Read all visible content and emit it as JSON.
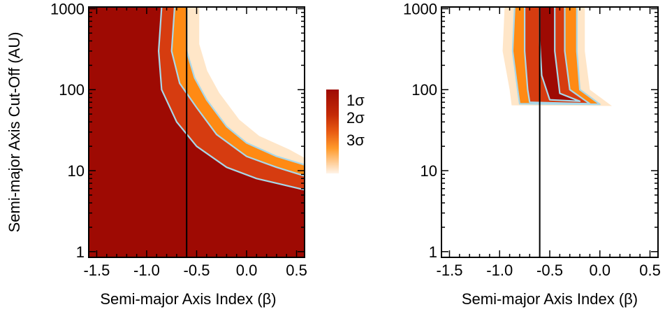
{
  "figure": {
    "colors": {
      "confidence_fill": "#9e0a03",
      "mid_red": "#d63c10",
      "orange": "#ff8a14",
      "fade": "#ffe6c8",
      "contour": "#a8d8ea",
      "reference_line": "#000000",
      "axis": "#000000"
    },
    "colorbar": {
      "labels": [
        "1σ",
        "2σ",
        "3σ"
      ]
    }
  },
  "chart_data": [
    {
      "type": "heatmap",
      "panel": "left",
      "title": "",
      "xlabel": "Semi-major Axis Index (β)",
      "ylabel": "Semi-major Axis Cut-Off (AU)",
      "xlim": [
        -1.58,
        0.58
      ],
      "ylim": [
        0.85,
        1050
      ],
      "yscale": "log",
      "x_ticks": [
        -1.5,
        -1.0,
        -0.5,
        0.0,
        0.5
      ],
      "x_tick_labels": [
        "-1.5",
        "-1.0",
        "-0.5",
        "0.0",
        "0.5"
      ],
      "y_ticks": [
        1,
        10,
        100,
        1000
      ],
      "y_tick_labels": [
        "1",
        "10",
        "100",
        "1000"
      ],
      "reference_x": -0.6,
      "contours": [
        {
          "level": "1σ",
          "points": [
            [
              -0.85,
              1050
            ],
            [
              -0.88,
              300
            ],
            [
              -0.85,
              100
            ],
            [
              -0.7,
              40
            ],
            [
              -0.5,
              20
            ],
            [
              -0.2,
              11
            ],
            [
              0.1,
              8
            ],
            [
              0.58,
              5.8
            ]
          ]
        },
        {
          "level": "2σ",
          "points": [
            [
              -0.72,
              1050
            ],
            [
              -0.75,
              300
            ],
            [
              -0.67,
              120
            ],
            [
              -0.5,
              60
            ],
            [
              -0.3,
              28
            ],
            [
              0.0,
              15
            ],
            [
              0.3,
              11
            ],
            [
              0.58,
              8.6
            ]
          ]
        },
        {
          "level": "3σ",
          "points": [
            [
              -0.6,
              1050
            ],
            [
              -0.6,
              300
            ],
            [
              -0.52,
              140
            ],
            [
              -0.4,
              75
            ],
            [
              -0.2,
              35
            ],
            [
              0.0,
              22
            ],
            [
              0.3,
              15
            ],
            [
              0.58,
              11.8
            ]
          ]
        }
      ]
    },
    {
      "type": "heatmap",
      "panel": "right",
      "title": "",
      "xlabel": "Semi-major Axis Index (β)",
      "ylabel": "",
      "xlim": [
        -1.58,
        0.58
      ],
      "ylim": [
        0.85,
        1050
      ],
      "yscale": "log",
      "x_ticks": [
        -1.5,
        -1.0,
        -0.5,
        0.0,
        0.5
      ],
      "x_tick_labels": [
        "-1.5",
        "-1.0",
        "-0.5",
        "0.0",
        "0.5"
      ],
      "y_ticks": [
        1,
        10,
        100,
        1000
      ],
      "y_tick_labels": [
        "1",
        "10",
        "100",
        "1000"
      ],
      "reference_x": -0.6,
      "contours": [
        {
          "level": "1σ",
          "points": [
            [
              -0.6,
              1050
            ],
            [
              -0.6,
              400
            ],
            [
              -0.58,
              150
            ],
            [
              -0.5,
              75
            ],
            [
              -0.2,
              72
            ],
            [
              -0.4,
              90
            ],
            [
              -0.45,
              300
            ],
            [
              -0.45,
              1050
            ]
          ]
        },
        {
          "level": "2σ",
          "points": [
            [
              -0.75,
              1050
            ],
            [
              -0.75,
              300
            ],
            [
              -0.72,
              100
            ],
            [
              -0.7,
              70
            ],
            [
              -0.1,
              67
            ],
            [
              -0.3,
              100
            ],
            [
              -0.35,
              300
            ],
            [
              -0.35,
              1050
            ]
          ]
        },
        {
          "level": "3σ",
          "points": [
            [
              -0.85,
              1050
            ],
            [
              -0.87,
              300
            ],
            [
              -0.82,
              100
            ],
            [
              -0.8,
              67
            ],
            [
              0.0,
              66
            ],
            [
              -0.2,
              100
            ],
            [
              -0.23,
              300
            ],
            [
              -0.23,
              1050
            ]
          ]
        }
      ]
    }
  ]
}
